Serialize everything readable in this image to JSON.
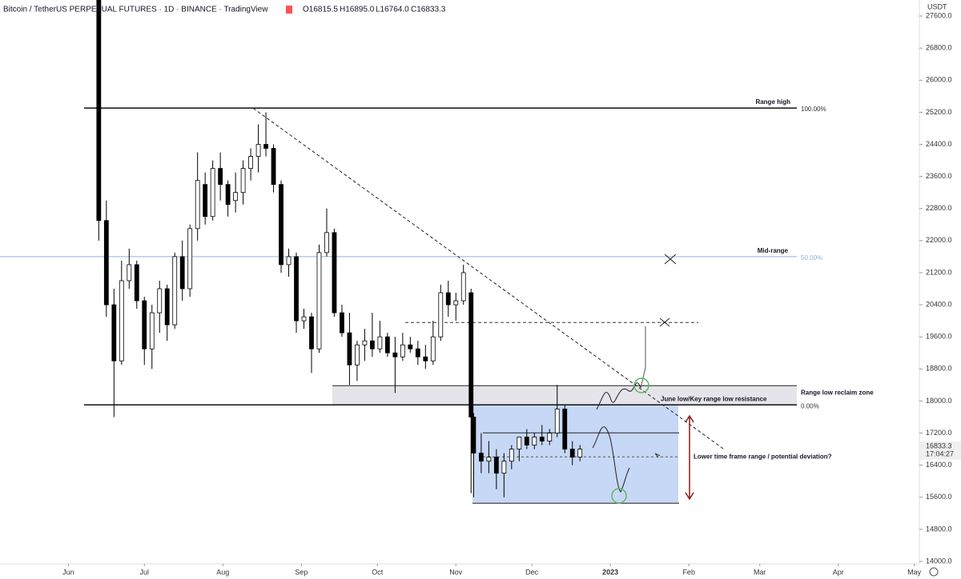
{
  "header": {
    "title": "Bitcoin / TetherUS PERPETUAL FUTURES · 1D · BINANCE · TradingView",
    "ohlc": [
      "O16815.5",
      "H16895.0",
      "L16764.0",
      "C16833.3"
    ]
  },
  "chart_data": {
    "type": "candlestick",
    "currency": "USDT",
    "x": [
      12,
      15,
      18,
      21,
      24,
      27,
      30,
      33,
      36,
      39,
      42,
      45,
      48,
      51,
      54,
      57,
      60,
      63,
      66,
      69,
      72,
      75,
      78,
      81,
      84,
      87,
      90,
      93,
      96,
      99,
      102,
      105,
      108,
      111,
      114,
      117,
      120,
      123,
      126,
      129,
      132,
      135,
      138,
      141,
      144,
      147,
      150,
      153,
      156,
      159,
      160,
      163,
      166,
      169,
      172,
      175,
      178,
      181,
      184,
      187,
      190,
      193,
      196,
      199,
      202
    ],
    "ohlc": [
      [
        28000,
        28200,
        22000,
        22500
      ],
      [
        22500,
        23000,
        20100,
        20400
      ],
      [
        20400,
        20800,
        17600,
        19000
      ],
      [
        19000,
        21500,
        18900,
        21000
      ],
      [
        21000,
        21800,
        20800,
        21400
      ],
      [
        21400,
        21500,
        20300,
        20500
      ],
      [
        20500,
        20600,
        18900,
        19300
      ],
      [
        19300,
        20400,
        18800,
        20200
      ],
      [
        20200,
        21000,
        19700,
        20800
      ],
      [
        20800,
        20900,
        19500,
        19900
      ],
      [
        19900,
        21700,
        19800,
        21600
      ],
      [
        21600,
        22000,
        20500,
        20800
      ],
      [
        20800,
        22400,
        20600,
        22300
      ],
      [
        22300,
        24200,
        22000,
        23500
      ],
      [
        23400,
        23700,
        22400,
        22600
      ],
      [
        22600,
        24000,
        22500,
        23800
      ],
      [
        23800,
        24200,
        23000,
        23400
      ],
      [
        23400,
        23500,
        22600,
        22900
      ],
      [
        23000,
        23700,
        22700,
        23200
      ],
      [
        23200,
        24000,
        22900,
        23800
      ],
      [
        23800,
        24300,
        23500,
        24100
      ],
      [
        24100,
        24900,
        23700,
        24400
      ],
      [
        24400,
        25200,
        24100,
        24300
      ],
      [
        24300,
        24400,
        23200,
        23400
      ],
      [
        23400,
        23500,
        21200,
        21400
      ],
      [
        21400,
        21800,
        21100,
        21600
      ],
      [
        21600,
        21700,
        19700,
        20000
      ],
      [
        20000,
        20300,
        19800,
        20100
      ],
      [
        20100,
        20200,
        18700,
        19300
      ],
      [
        19300,
        21900,
        19200,
        21700
      ],
      [
        21700,
        22800,
        21600,
        22200
      ],
      [
        22200,
        22300,
        20100,
        20200
      ],
      [
        20200,
        20400,
        19600,
        19700
      ],
      [
        19700,
        20200,
        18400,
        18900
      ],
      [
        18900,
        19500,
        18500,
        19400
      ],
      [
        19400,
        19800,
        19000,
        19500
      ],
      [
        19500,
        20200,
        19100,
        19300
      ],
      [
        19300,
        20000,
        19200,
        19600
      ],
      [
        19600,
        19700,
        19100,
        19200
      ],
      [
        19200,
        19600,
        18200,
        19100
      ],
      [
        19100,
        19700,
        19000,
        19400
      ],
      [
        19400,
        19600,
        19200,
        19300
      ],
      [
        19300,
        19500,
        18900,
        19100
      ],
      [
        19100,
        19400,
        18800,
        19000
      ],
      [
        19000,
        20000,
        18900,
        19600
      ],
      [
        19600,
        20900,
        19500,
        20700
      ],
      [
        20700,
        21000,
        20100,
        20400
      ],
      [
        20400,
        20700,
        20000,
        20500
      ],
      [
        20500,
        21400,
        20400,
        21200
      ],
      [
        20700,
        20800,
        15700,
        17600
      ],
      [
        17600,
        17700,
        15600,
        16700
      ],
      [
        16700,
        17200,
        16200,
        16500
      ],
      [
        16500,
        17000,
        16200,
        16600
      ],
      [
        16600,
        16800,
        15800,
        16200
      ],
      [
        16200,
        16700,
        15600,
        16500
      ],
      [
        16500,
        16900,
        16300,
        16800
      ],
      [
        16800,
        17100,
        16500,
        17100
      ],
      [
        17100,
        17300,
        16800,
        16900
      ],
      [
        16900,
        17200,
        16800,
        17100
      ],
      [
        17100,
        17400,
        16900,
        17000
      ],
      [
        17000,
        17300,
        16900,
        17200
      ],
      [
        17200,
        18400,
        17100,
        17800
      ],
      [
        17800,
        17900,
        16700,
        16800
      ],
      [
        16800,
        17000,
        16400,
        16600
      ],
      [
        16600,
        16900,
        16500,
        16800
      ]
    ],
    "xlim": [
      -27,
      336
    ],
    "ylim": [
      13940,
      28000
    ],
    "xticks": [
      {
        "value": 0,
        "label": "Jun"
      },
      {
        "value": 30,
        "label": "Jul"
      },
      {
        "value": 61,
        "label": "Aug"
      },
      {
        "value": 92,
        "label": "Sep"
      },
      {
        "value": 122,
        "label": "Oct"
      },
      {
        "value": 153,
        "label": "Nov"
      },
      {
        "value": 183,
        "label": "Dec"
      },
      {
        "value": 214,
        "label": "2023"
      },
      {
        "value": 245,
        "label": "Feb"
      },
      {
        "value": 273,
        "label": "Mar"
      },
      {
        "value": 304,
        "label": "Apr"
      },
      {
        "value": 334,
        "label": "May"
      }
    ],
    "yticks": [
      {
        "value": 14000,
        "label": "14000.0"
      },
      {
        "value": 14800,
        "label": "14800.0"
      },
      {
        "value": 15600,
        "label": "15600.0"
      },
      {
        "value": 16400,
        "label": "16400.0"
      },
      {
        "value": 17200,
        "label": "17200.0"
      },
      {
        "value": 18000,
        "label": "18000.0"
      },
      {
        "value": 18800,
        "label": "18800.0"
      },
      {
        "value": 19600,
        "label": "19600.0"
      },
      {
        "value": 20400,
        "label": "20400.0"
      },
      {
        "value": 21200,
        "label": "21200.0"
      },
      {
        "value": 22000,
        "label": "22000.0"
      },
      {
        "value": 22800,
        "label": "22800.0"
      },
      {
        "value": 23600,
        "label": "23600.0"
      },
      {
        "value": 24400,
        "label": "24400.0"
      },
      {
        "value": 25200,
        "label": "25200.0"
      },
      {
        "value": 26000,
        "label": "26000.0"
      },
      {
        "value": 26800,
        "label": "26800.0"
      },
      {
        "value": 27600,
        "label": "27600.0"
      }
    ],
    "last_price": 16833.3,
    "countdown": "17:04:27",
    "levels": [
      {
        "label": "Range high",
        "value": 25306,
        "pct": "100.00%"
      },
      {
        "label": "Mid-range",
        "value": 21600,
        "pct": "50.00%"
      },
      {
        "label": "June low/Key range low resistance",
        "value": 17904,
        "pct": "0.00%"
      }
    ],
    "zone": {
      "label": "Range low reclaim zone",
      "top": 18383,
      "bottom": 17904
    },
    "box": {
      "top": 17904,
      "bottom": 15450,
      "line": 17206,
      "dashed": 16608,
      "label": "Lower time frame range / potential deviation?"
    },
    "target": 19959,
    "trendline": {
      "x": [
        73,
        259
      ],
      "y": [
        25300,
        16790
      ]
    }
  }
}
